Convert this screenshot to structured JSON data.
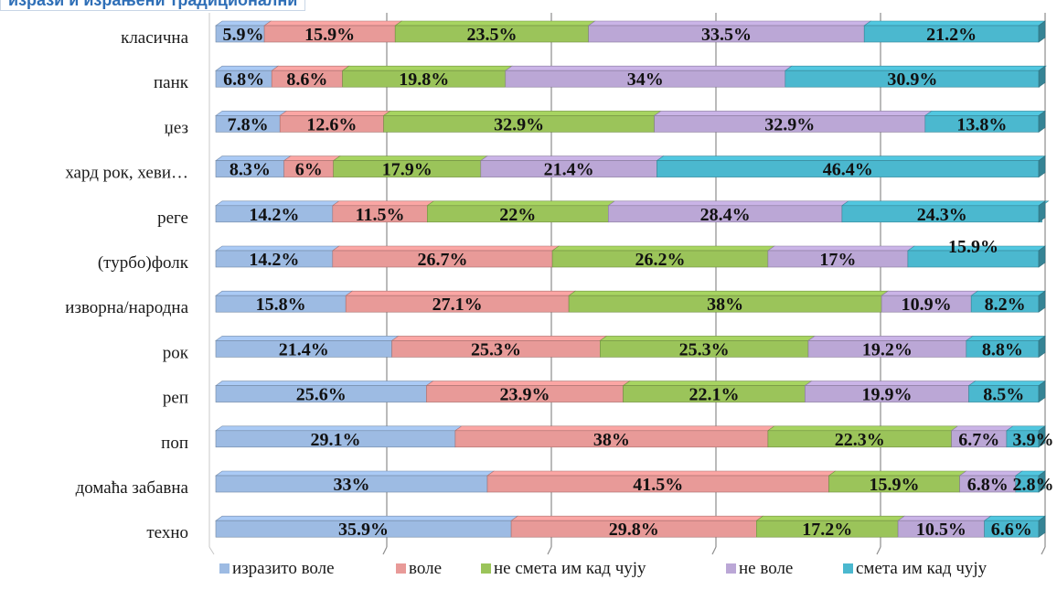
{
  "chart_data": {
    "type": "bar",
    "orientation": "horizontal",
    "stacked": true,
    "percent": true,
    "title": "изрази и израњени традиционални",
    "categories": [
      "класична",
      "панк",
      "џез",
      "хард рок, хеви…",
      "реге",
      "(турбо)фолк",
      "изворна/народна",
      "рок",
      "реп",
      "поп",
      "домаћа забавна",
      "техно"
    ],
    "series": [
      {
        "name": "изразито воле",
        "color": "#9dbbe3",
        "values": [
          5.9,
          6.8,
          7.8,
          8.3,
          14.2,
          14.2,
          15.8,
          21.4,
          25.6,
          29.1,
          33,
          35.9
        ],
        "labels": [
          "5.9%",
          "6.8%",
          "7.8%",
          "8.3%",
          "14.2%",
          "14.2%",
          "15.8%",
          "21.4%",
          "25.6%",
          "29.1%",
          "33%",
          "35.9%"
        ]
      },
      {
        "name": "воле",
        "color": "#e89a98",
        "values": [
          15.9,
          8.6,
          12.6,
          6,
          11.5,
          26.7,
          27.1,
          25.3,
          23.9,
          38,
          41.5,
          29.8
        ],
        "labels": [
          "15.9%",
          "8.6%",
          "12.6%",
          "6%",
          "11.5%",
          "26.7%",
          "27.1%",
          "25.3%",
          "23.9%",
          "38%",
          "41.5%",
          "29.8%"
        ]
      },
      {
        "name": "не смета им кад чују",
        "color": "#9bc45a",
        "values": [
          23.5,
          19.8,
          32.9,
          17.9,
          22,
          26.2,
          38,
          25.3,
          22.1,
          22.3,
          15.9,
          17.2
        ],
        "labels": [
          "23.5%",
          "19.8%",
          "32.9%",
          "17.9%",
          "22%",
          "26.2%",
          "38%",
          "25.3%",
          "22.1%",
          "22.3%",
          "15.9%",
          "17.2%"
        ]
      },
      {
        "name": "не воле",
        "color": "#bba7d6",
        "values": [
          33.5,
          34,
          32.9,
          21.4,
          28.4,
          17,
          10.9,
          19.2,
          19.9,
          6.7,
          6.8,
          10.5
        ],
        "labels": [
          "33.5%",
          "34%",
          "32.9%",
          "21.4%",
          "28.4%",
          "17%",
          "10.9%",
          "19.2%",
          "19.9%",
          "6.7%",
          "6.8%",
          "10.5%"
        ]
      },
      {
        "name": "смета им кад чују",
        "color": "#4bb8cf",
        "values": [
          21.2,
          30.9,
          13.8,
          46.4,
          24.3,
          15.9,
          8.2,
          8.8,
          8.5,
          3.9,
          2.8,
          6.6
        ],
        "labels": [
          "21.2%",
          "30.9%",
          "13.8%",
          "46.4%",
          "24.3%",
          "15.9%",
          "8.2%",
          "8.8%",
          "8.5%",
          "3.9%",
          "2.8%",
          "6.6%"
        ]
      }
    ],
    "xlim": [
      0,
      100
    ],
    "grid": true,
    "legend_position": "bottom"
  }
}
